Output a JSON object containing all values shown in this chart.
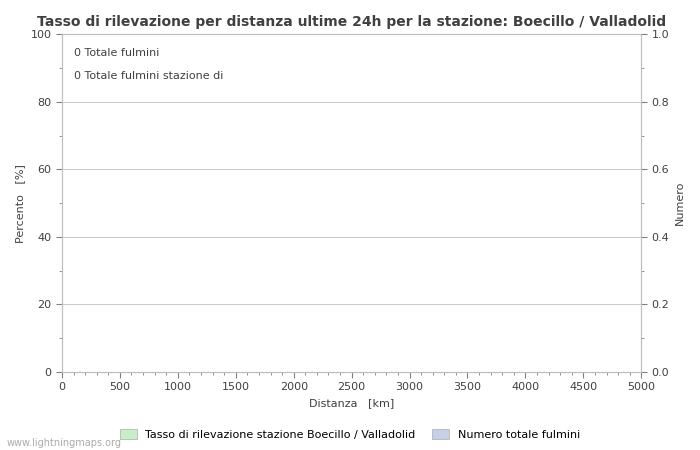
{
  "title": "Tasso di rilevazione per distanza ultime 24h per la stazione: Boecillo / Valladolid",
  "xlabel": "Distanza   [km]",
  "ylabel_left": "Percento   [%]",
  "ylabel_right": "Numero",
  "xlim": [
    0,
    5000
  ],
  "ylim_left": [
    0,
    100
  ],
  "ylim_right": [
    0.0,
    1.0
  ],
  "xticks_major": [
    0,
    500,
    1000,
    1500,
    2000,
    2500,
    3000,
    3500,
    4000,
    4500,
    5000
  ],
  "yticks_left_major": [
    0,
    20,
    40,
    60,
    80,
    100
  ],
  "yticks_left_minor": [
    10,
    30,
    50,
    70,
    90
  ],
  "yticks_right_major": [
    0.0,
    0.2,
    0.4,
    0.6,
    0.8,
    1.0
  ],
  "yticks_right_minor": [
    0.1,
    0.3,
    0.5,
    0.7,
    0.9
  ],
  "grid_color": "#c0c0c0",
  "background_color": "#ffffff",
  "annotation_lines": [
    "0 Totale fulmini",
    "0 Totale fulmini stazione di"
  ],
  "legend_label_left": "Tasso di rilevazione stazione Boecillo / Valladolid",
  "legend_label_right": "Numero totale fulmini",
  "legend_color_left": "#c8eec8",
  "legend_color_right": "#c8d0e8",
  "watermark": "www.lightningmaps.org",
  "title_fontsize": 10,
  "axis_label_fontsize": 8,
  "tick_fontsize": 8,
  "annotation_fontsize": 8,
  "legend_fontsize": 8,
  "watermark_fontsize": 7,
  "spine_color": "#c0c0c0",
  "tick_color": "#808080",
  "text_color": "#404040"
}
